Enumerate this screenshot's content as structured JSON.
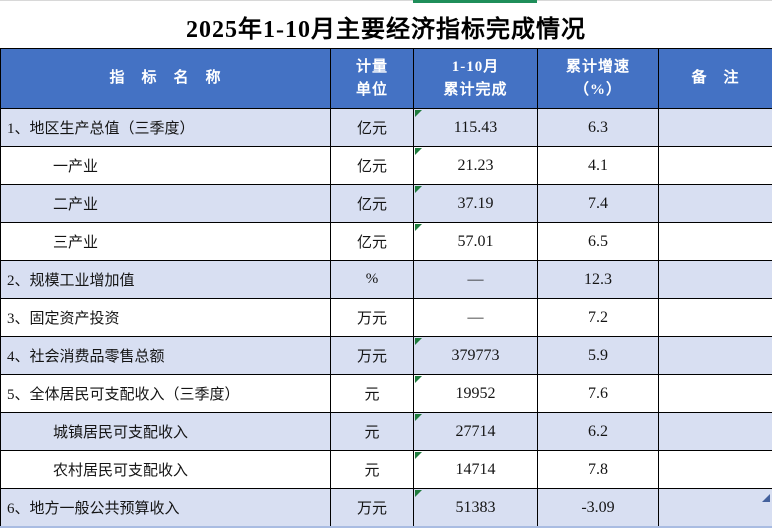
{
  "title": "2025年1-10月主要经济指标完成情况",
  "colors": {
    "header_bg": "#4472C4",
    "header_text": "#FFFFFF",
    "row_tint": "#D8DFF2",
    "grid_border": "#000000",
    "error_marker_green": "#1E7B3C",
    "selection_edge_green": "#1F8E5A",
    "fill_handle_blue": "#44619D",
    "table_bottom_border": "#A9BCE2"
  },
  "table": {
    "headers": [
      "指　标　名　称",
      "计量\n单位",
      "1-10月\n累计完成",
      "累计增速\n（%）",
      "备　注"
    ],
    "rows": [
      {
        "name": "1、地区生产总值（三季度）",
        "indent": false,
        "unit": "亿元",
        "value": "115.43",
        "growth": "6.3",
        "note": "",
        "tint": true,
        "error_marker": true
      },
      {
        "name": "一产业",
        "indent": true,
        "unit": "亿元",
        "value": "21.23",
        "growth": "4.1",
        "note": "",
        "tint": false,
        "error_marker": true
      },
      {
        "name": "二产业",
        "indent": true,
        "unit": "亿元",
        "value": "37.19",
        "growth": "7.4",
        "note": "",
        "tint": true,
        "error_marker": true
      },
      {
        "name": "三产业",
        "indent": true,
        "unit": "亿元",
        "value": "57.01",
        "growth": "6.5",
        "note": "",
        "tint": false,
        "error_marker": true
      },
      {
        "name": "2、规模工业增加值",
        "indent": false,
        "unit": "%",
        "value": "—",
        "growth": "12.3",
        "note": "",
        "tint": true,
        "error_marker": false
      },
      {
        "name": "3、固定资产投资",
        "indent": false,
        "unit": "万元",
        "value": "—",
        "growth": "7.2",
        "note": "",
        "tint": false,
        "error_marker": false
      },
      {
        "name": "4、社会消费品零售总额",
        "indent": false,
        "unit": "万元",
        "value": "379773",
        "growth": "5.9",
        "note": "",
        "tint": true,
        "error_marker": true
      },
      {
        "name": "5、全体居民可支配收入（三季度）",
        "indent": false,
        "unit": "元",
        "value": "19952",
        "growth": "7.6",
        "note": "",
        "tint": false,
        "error_marker": true
      },
      {
        "name": "城镇居民可支配收入",
        "indent": true,
        "unit": "元",
        "value": "27714",
        "growth": "6.2",
        "note": "",
        "tint": true,
        "error_marker": true
      },
      {
        "name": "农村居民可支配收入",
        "indent": true,
        "unit": "元",
        "value": "14714",
        "growth": "7.8",
        "note": "",
        "tint": false,
        "error_marker": true
      },
      {
        "name": "6、地方一般公共预算收入",
        "indent": false,
        "unit": "万元",
        "value": "51383",
        "growth": "-3.09",
        "note": "",
        "tint": true,
        "error_marker": true
      }
    ]
  }
}
